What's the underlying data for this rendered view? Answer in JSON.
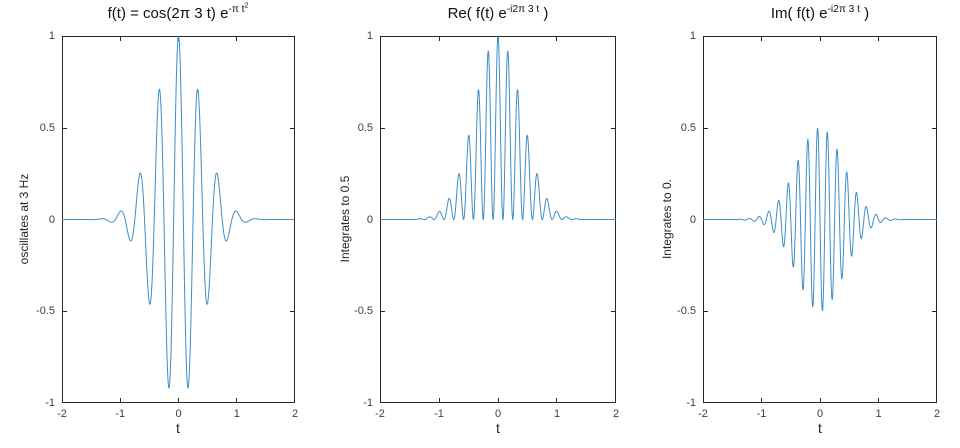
{
  "figure": {
    "background": "#ffffff",
    "line_color": "#3e8ec9",
    "axis_color": "#262626",
    "tick_label_color": "#404040",
    "title_color": "#111111"
  },
  "chart_data": [
    {
      "type": "line",
      "title_plain": "f(t) = cos(2π 3 t) e^(-π t²)",
      "title_segments": [
        {
          "text": "f(t) = cos(2π 3 t) e",
          "level": 0
        },
        {
          "text": "-π t",
          "level": 1
        },
        {
          "text": "2",
          "level": 2
        }
      ],
      "xlabel": "t",
      "ylabel": "oscillates at 3 Hz",
      "x_range": [
        -2,
        2
      ],
      "y_range": [
        -1,
        1
      ],
      "x_tick_labels": [
        "-2",
        "-1",
        "0",
        "1",
        "2"
      ],
      "y_tick_labels": [
        "1",
        "0.5",
        "0",
        "-0.5",
        "-1"
      ],
      "grid": false,
      "legend": null,
      "series": [
        {
          "name": "f(t)",
          "fn_id": "cos3_gauss",
          "formula": "cos(2*pi*3*t) * exp(-pi*t^2)",
          "frequency_hz": 3,
          "envelope": "exp(-pi*t^2)",
          "peak_value": 1.0,
          "samples": 1601
        }
      ]
    },
    {
      "type": "line",
      "title_plain": "Re( f(t) e^(-i2π 3 t) )",
      "title_segments": [
        {
          "text": "Re( f(t) e",
          "level": 0
        },
        {
          "text": "-i2π 3 t",
          "level": 1
        },
        {
          "text": " )",
          "level": 0
        }
      ],
      "xlabel": "t",
      "ylabel": "Integrates to 0.5",
      "x_range": [
        -2,
        2
      ],
      "y_range": [
        -1,
        1
      ],
      "x_tick_labels": [
        "-2",
        "-1",
        "0",
        "1",
        "2"
      ],
      "y_tick_labels": [
        "1",
        "0.5",
        "0",
        "-0.5",
        "-1"
      ],
      "grid": false,
      "legend": null,
      "series": [
        {
          "name": "Re(f(t)e^{-i2π3t})",
          "fn_id": "cos3sq_gauss",
          "formula": "cos(2*pi*3*t)^2 * exp(-pi*t^2)",
          "frequency_hz": 6,
          "envelope": "exp(-pi*t^2)",
          "peak_value": 1.0,
          "integral": 0.5,
          "samples": 1601
        }
      ]
    },
    {
      "type": "line",
      "title_plain": "Im( f(t) e^(-i2π 3 t) )",
      "title_segments": [
        {
          "text": "Im( f(t) e",
          "level": 0
        },
        {
          "text": "-i2π 3 t",
          "level": 1
        },
        {
          "text": " )",
          "level": 0
        }
      ],
      "xlabel": "t",
      "ylabel": "Integrates to 0.",
      "x_range": [
        -2,
        2
      ],
      "y_range": [
        -1,
        1
      ],
      "x_tick_labels": [
        "-2",
        "-1",
        "0",
        "1",
        "2"
      ],
      "y_tick_labels": [
        "1",
        "0.5",
        "0",
        "-0.5",
        "-1"
      ],
      "grid": false,
      "legend": null,
      "series": [
        {
          "name": "Im(f(t)e^{-i2π3t})",
          "fn_id": "neg_half_sin6_gauss",
          "formula": "-0.5*sin(2*pi*6*t) * exp(-pi*t^2)",
          "frequency_hz": 6,
          "envelope": "0.5*exp(-pi*t^2)",
          "peak_value": 0.5,
          "integral": 0.0,
          "samples": 1601
        }
      ]
    }
  ]
}
